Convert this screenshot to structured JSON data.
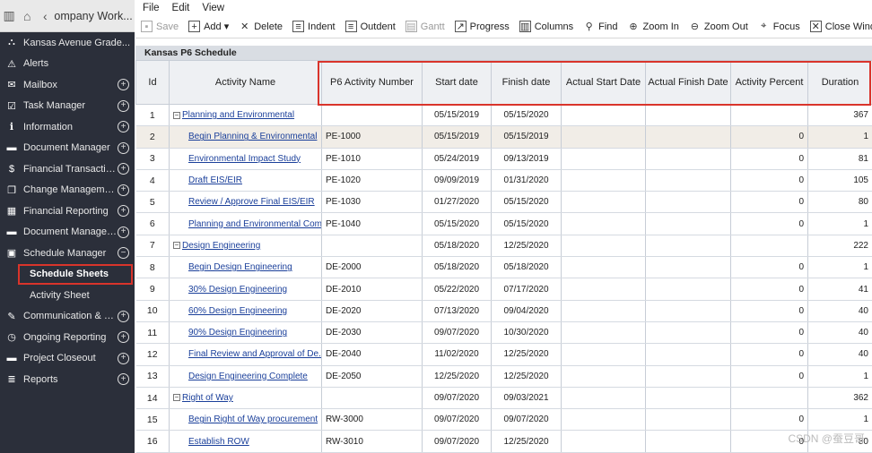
{
  "topbar": {
    "title": "ompany Work..."
  },
  "sidebar": {
    "items": [
      {
        "label": "Kansas Avenue Grade...",
        "icon": "project-icon",
        "plus": false
      },
      {
        "label": "Alerts",
        "icon": "alert-icon",
        "plus": false
      },
      {
        "label": "Mailbox",
        "icon": "mail-icon",
        "plus": true
      },
      {
        "label": "Task Manager",
        "icon": "task-icon",
        "plus": true
      },
      {
        "label": "Information",
        "icon": "info-icon",
        "plus": true
      },
      {
        "label": "Document Manager",
        "icon": "folder-icon",
        "plus": true
      },
      {
        "label": "Financial Transactions",
        "icon": "dollar-icon",
        "plus": true
      },
      {
        "label": "Change Management",
        "icon": "copy-icon",
        "plus": true
      },
      {
        "label": "Financial Reporting",
        "icon": "report-icon",
        "plus": true
      },
      {
        "label": "Document Managem...",
        "icon": "folder-icon",
        "plus": true
      },
      {
        "label": "Schedule Manager",
        "icon": "calendar-icon",
        "plus": true,
        "expanded": true
      },
      {
        "label": "Schedule Sheets",
        "sub": true,
        "active": true
      },
      {
        "label": "Activity Sheet",
        "sub": true
      },
      {
        "label": "Communication & Fo...",
        "icon": "chat-icon",
        "plus": true
      },
      {
        "label": "Ongoing Reporting",
        "icon": "clock-icon",
        "plus": true
      },
      {
        "label": "Project Closeout",
        "icon": "folder-icon",
        "plus": true
      },
      {
        "label": "Reports",
        "icon": "list-icon",
        "plus": true
      }
    ]
  },
  "menu": {
    "file": "File",
    "edit": "Edit",
    "view": "View"
  },
  "toolbar": {
    "save": "Save",
    "add": "Add",
    "delete": "Delete",
    "indent": "Indent",
    "outdent": "Outdent",
    "gantt": "Gantt",
    "progress": "Progress",
    "columns": "Columns",
    "find": "Find",
    "zoom_in": "Zoom In",
    "zoom_out": "Zoom Out",
    "focus": "Focus",
    "close_window": "Close Window"
  },
  "sheet": {
    "title": "Kansas P6 Schedule"
  },
  "columns": [
    "Id",
    "Activity Name",
    "P6 Activity Number",
    "Start date",
    "Finish date",
    "Actual Start Date",
    "Actual Finish Date",
    "Activity Percent",
    "Duration"
  ],
  "rows": [
    {
      "id": "1",
      "name": "Planning and Environmental",
      "level": 1,
      "num": "",
      "start": "05/15/2019",
      "finish": "05/15/2020",
      "pct": "",
      "dur": "367"
    },
    {
      "id": "2",
      "name": "Begin Planning & Environmental",
      "level": 2,
      "num": "PE-1000",
      "start": "05/15/2019",
      "finish": "05/15/2019",
      "pct": "0",
      "dur": "1"
    },
    {
      "id": "3",
      "name": "Environmental Impact Study",
      "level": 2,
      "num": "PE-1010",
      "start": "05/24/2019",
      "finish": "09/13/2019",
      "pct": "0",
      "dur": "81"
    },
    {
      "id": "4",
      "name": "Draft EIS/EIR",
      "level": 2,
      "num": "PE-1020",
      "start": "09/09/2019",
      "finish": "01/31/2020",
      "pct": "0",
      "dur": "105"
    },
    {
      "id": "5",
      "name": "Review / Approve Final EIS/EIR",
      "level": 2,
      "num": "PE-1030",
      "start": "01/27/2020",
      "finish": "05/15/2020",
      "pct": "0",
      "dur": "80"
    },
    {
      "id": "6",
      "name": "Planning and Environmental Com...",
      "level": 2,
      "num": "PE-1040",
      "start": "05/15/2020",
      "finish": "05/15/2020",
      "pct": "0",
      "dur": "1"
    },
    {
      "id": "7",
      "name": "Design Engineering",
      "level": 1,
      "num": "",
      "start": "05/18/2020",
      "finish": "12/25/2020",
      "pct": "",
      "dur": "222"
    },
    {
      "id": "8",
      "name": "Begin Design Engineering",
      "level": 2,
      "num": "DE-2000",
      "start": "05/18/2020",
      "finish": "05/18/2020",
      "pct": "0",
      "dur": "1"
    },
    {
      "id": "9",
      "name": "30% Design Engineering",
      "level": 2,
      "num": "DE-2010",
      "start": "05/22/2020",
      "finish": "07/17/2020",
      "pct": "0",
      "dur": "41"
    },
    {
      "id": "10",
      "name": "60% Design Engineering",
      "level": 2,
      "num": "DE-2020",
      "start": "07/13/2020",
      "finish": "09/04/2020",
      "pct": "0",
      "dur": "40"
    },
    {
      "id": "11",
      "name": "90% Design Engineering",
      "level": 2,
      "num": "DE-2030",
      "start": "09/07/2020",
      "finish": "10/30/2020",
      "pct": "0",
      "dur": "40"
    },
    {
      "id": "12",
      "name": "Final Review and Approval of De...",
      "level": 2,
      "num": "DE-2040",
      "start": "11/02/2020",
      "finish": "12/25/2020",
      "pct": "0",
      "dur": "40"
    },
    {
      "id": "13",
      "name": "Design Engineering Complete",
      "level": 2,
      "num": "DE-2050",
      "start": "12/25/2020",
      "finish": "12/25/2020",
      "pct": "0",
      "dur": "1"
    },
    {
      "id": "14",
      "name": "Right of Way",
      "level": 1,
      "num": "",
      "start": "09/07/2020",
      "finish": "09/03/2021",
      "pct": "",
      "dur": "362"
    },
    {
      "id": "15",
      "name": "Begin Right of Way procurement",
      "level": 2,
      "num": "RW-3000",
      "start": "09/07/2020",
      "finish": "09/07/2020",
      "pct": "0",
      "dur": "1"
    },
    {
      "id": "16",
      "name": "Establish ROW",
      "level": 2,
      "num": "RW-3010",
      "start": "09/07/2020",
      "finish": "12/25/2020",
      "pct": "0",
      "dur": "80"
    }
  ],
  "watermark": "CSDN @蚕豆哥",
  "colors": {
    "sidebar_bg": "#2b2f3a",
    "highlight": "#d9342b",
    "link": "#1a3f9a"
  }
}
